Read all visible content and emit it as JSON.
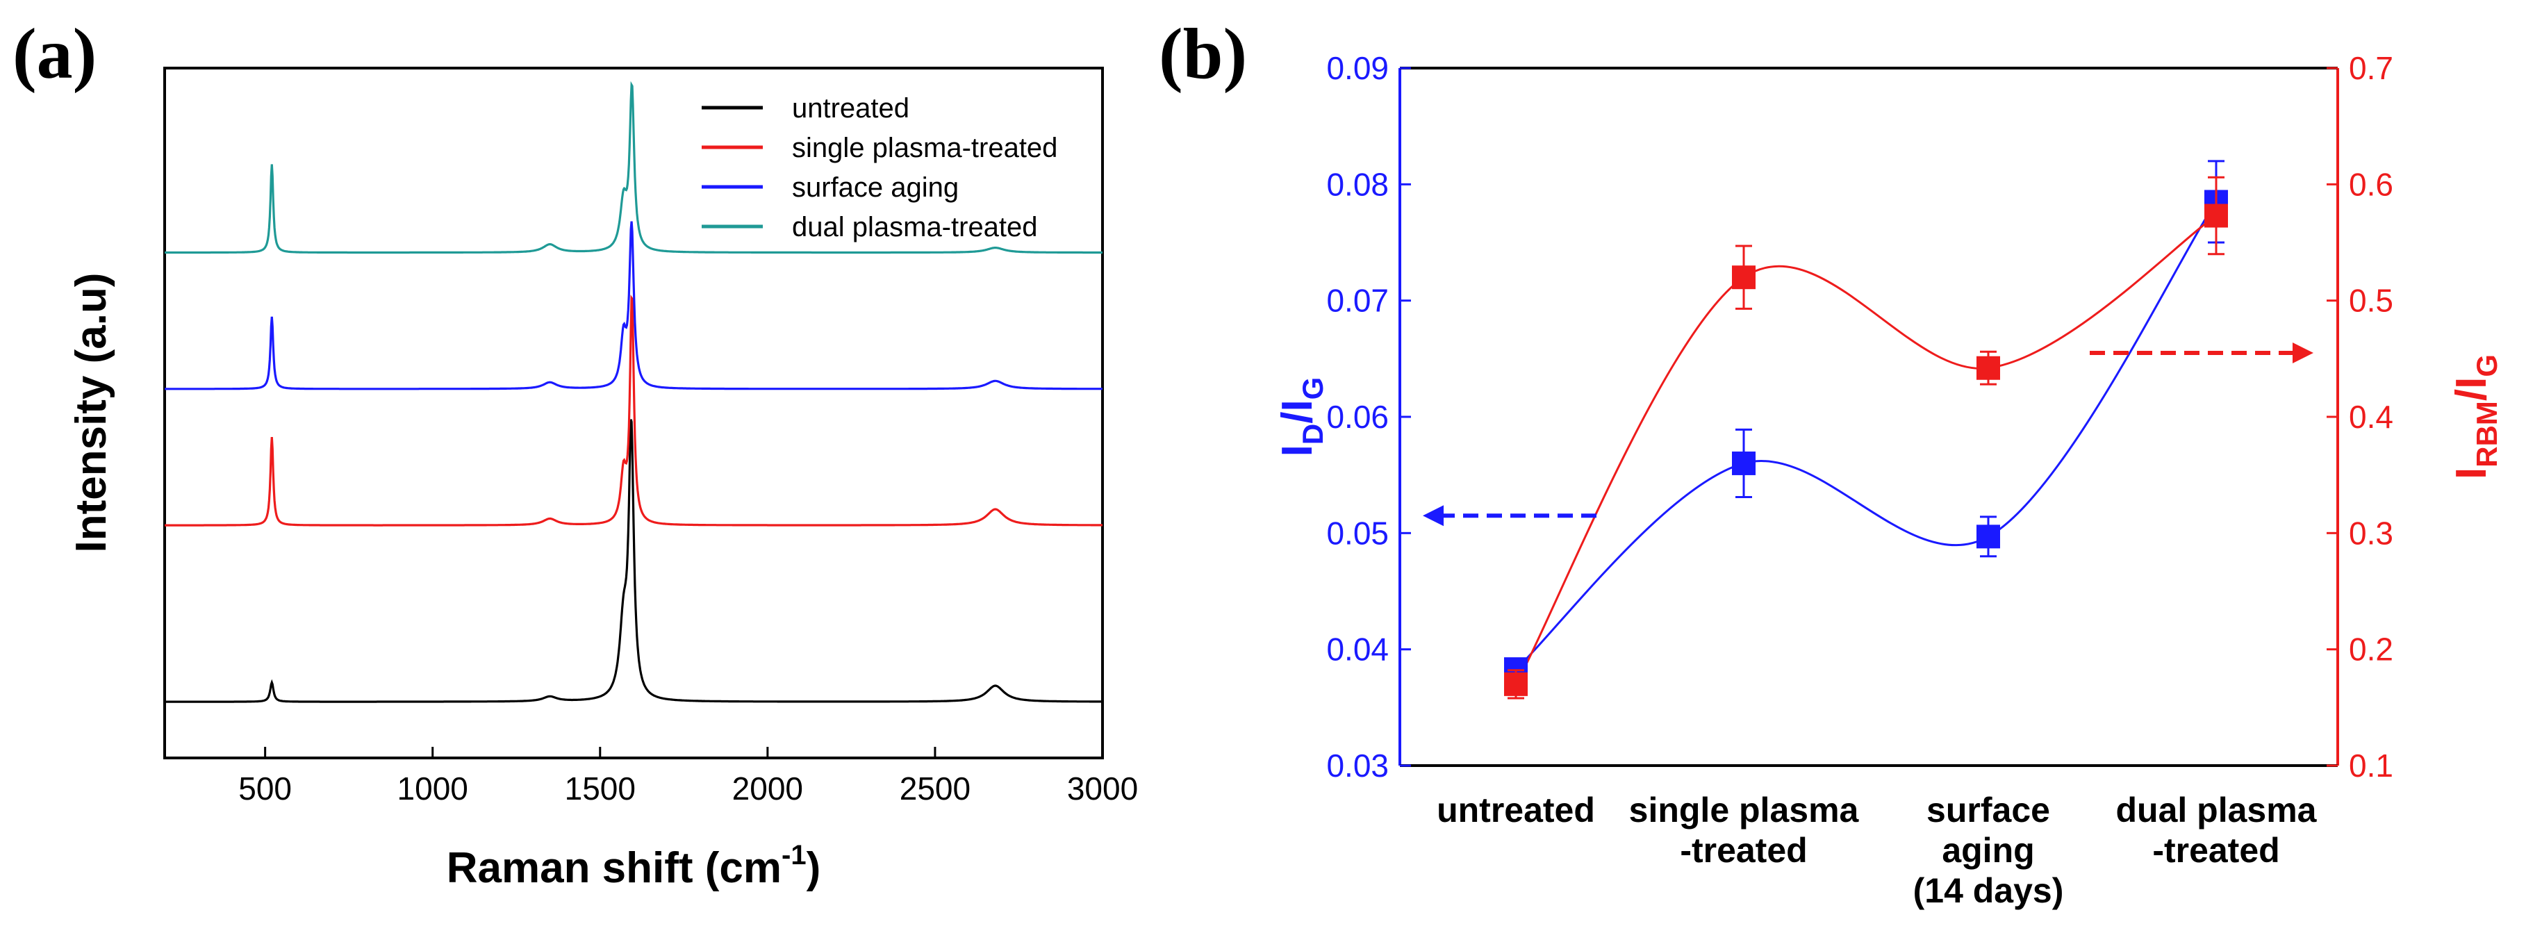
{
  "panels": {
    "a": {
      "label": "(a)"
    },
    "b": {
      "label": "(b)"
    }
  },
  "chart_data": [
    {
      "type": "line",
      "panel": "(a)",
      "title": "",
      "xlabel": "Raman shift (cm",
      "xlabel_superscript": "-1",
      "xlabel_suffix": ")",
      "ylabel": "Intensity (a.u)",
      "xlim": [
        200,
        3000
      ],
      "xticks": [
        500,
        1000,
        1500,
        2000,
        2500,
        3000
      ],
      "xtick_labels": [
        "500",
        "1000",
        "1500",
        "2000",
        "2500",
        "3000"
      ],
      "ylim": [
        0,
        4.3
      ],
      "y_ticks_shown": false,
      "legend_position": "top-right",
      "series": [
        {
          "name": "untreated",
          "color": "#000000",
          "baseline": 0.35,
          "peaks": [
            [
              520,
              0.12,
              6
            ],
            [
              1350,
              0.03,
              25
            ],
            [
              1570,
              0.45,
              14
            ],
            [
              1593,
              1.65,
              9
            ],
            [
              2680,
              0.1,
              32
            ]
          ]
        },
        {
          "name": "single plasma-treated",
          "color": "#ee1c1c",
          "baseline": 1.45,
          "peaks": [
            [
              520,
              0.55,
              5
            ],
            [
              1350,
              0.04,
              25
            ],
            [
              1570,
              0.3,
              10
            ],
            [
              1595,
              1.4,
              7
            ],
            [
              2680,
              0.1,
              32
            ]
          ]
        },
        {
          "name": "surface aging",
          "color": "#1a1aff",
          "baseline": 2.3,
          "peaks": [
            [
              520,
              0.45,
              5
            ],
            [
              1350,
              0.04,
              25
            ],
            [
              1570,
              0.3,
              10
            ],
            [
              1594,
              1.0,
              8
            ],
            [
              2680,
              0.05,
              32
            ]
          ]
        },
        {
          "name": "dual plasma-treated",
          "color": "#1f9a96",
          "baseline": 3.15,
          "peaks": [
            [
              520,
              0.55,
              5
            ],
            [
              1350,
              0.05,
              25
            ],
            [
              1570,
              0.3,
              12
            ],
            [
              1595,
              1.0,
              8
            ],
            [
              2680,
              0.03,
              32
            ]
          ]
        }
      ]
    },
    {
      "type": "scatter",
      "panel": "(b)",
      "title": "",
      "categories": [
        "untreated",
        "single plasma\n-treated",
        "surface\naging\n(14 days)",
        "dual plasma\n-treated"
      ],
      "ylabel_left": "I",
      "ylabel_left_sub": "D",
      "ylabel_left_suffix": "/I",
      "ylabel_left_sub2": "G",
      "ylabel_right": "I",
      "ylabel_right_sub": "RBM",
      "ylabel_right_suffix": "/I",
      "ylabel_right_sub2": "G",
      "ylim_left": [
        0.03,
        0.09
      ],
      "yticks_left": [
        "0.03",
        "0.04",
        "0.05",
        "0.06",
        "0.07",
        "0.08",
        "0.09"
      ],
      "ylim_right": [
        0.1,
        0.7
      ],
      "yticks_right": [
        "0.1",
        "0.2",
        "0.3",
        "0.4",
        "0.5",
        "0.6",
        "0.7"
      ],
      "series": [
        {
          "name": "I_D/I_G",
          "axis": "left",
          "color": "#1a1aff",
          "values": [
            0.0383,
            0.056,
            0.0497,
            0.0785
          ],
          "errors": [
            0.0007,
            0.0029,
            0.0017,
            0.0035
          ]
        },
        {
          "name": "I_RBM/I_G",
          "axis": "right",
          "color": "#ee1c1c",
          "values": [
            0.17,
            0.52,
            0.442,
            0.573
          ],
          "errors": [
            0.012,
            0.027,
            0.014,
            0.033
          ]
        }
      ],
      "arrows": [
        {
          "direction": "left",
          "axis": "left",
          "color": "#1a1aff"
        },
        {
          "direction": "right",
          "axis": "right",
          "color": "#ee1c1c"
        }
      ]
    }
  ]
}
